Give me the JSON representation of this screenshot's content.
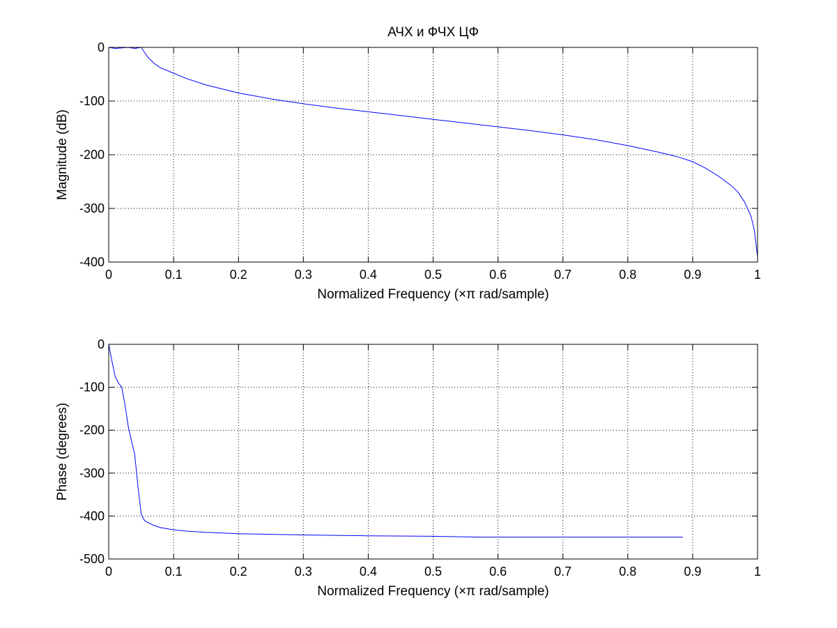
{
  "chart_data": [
    {
      "type": "line",
      "title": "АЧХ и ФЧХ ЦФ",
      "xlabel": "Normalized Frequency  (×π rad/sample)",
      "ylabel": "Magnitude (dB)",
      "xlim": [
        0,
        1
      ],
      "ylim": [
        -400,
        0
      ],
      "xticks": [
        0,
        0.1,
        0.2,
        0.3,
        0.4,
        0.5,
        0.6,
        0.7,
        0.8,
        0.9,
        1
      ],
      "xtick_labels": [
        "0",
        "0.1",
        "0.2",
        "0.3",
        "0.4",
        "0.5",
        "0.6",
        "0.7",
        "0.8",
        "0.9",
        "1"
      ],
      "yticks": [
        -400,
        -300,
        -200,
        -100,
        0
      ],
      "ytick_labels": [
        "-400",
        "-300",
        "-200",
        "-100",
        "0"
      ],
      "grid": true,
      "line_color": "#0000ff",
      "series": [
        {
          "x": [
            0,
            0.01,
            0.02,
            0.03,
            0.04,
            0.045,
            0.05,
            0.06,
            0.07,
            0.08,
            0.1,
            0.12,
            0.15,
            0.2,
            0.25,
            0.3,
            0.35,
            0.4,
            0.45,
            0.5,
            0.55,
            0.6,
            0.65,
            0.7,
            0.75,
            0.8,
            0.85,
            0.88,
            0.9,
            0.92,
            0.94,
            0.96,
            0.97,
            0.98,
            0.99,
            0.995,
            1
          ],
          "y": [
            0,
            -2,
            -1,
            0,
            -2,
            -1,
            0,
            -18,
            -30,
            -38,
            -48,
            -58,
            -70,
            -85,
            -96,
            -105,
            -113,
            -120,
            -127,
            -134,
            -141,
            -148,
            -155,
            -163,
            -172,
            -183,
            -196,
            -205,
            -213,
            -225,
            -240,
            -258,
            -270,
            -288,
            -315,
            -340,
            -390
          ]
        }
      ]
    },
    {
      "type": "line",
      "title": "",
      "xlabel": "Normalized Frequency  (×π rad/sample)",
      "ylabel": "Phase (degrees)",
      "xlim": [
        0,
        1
      ],
      "ylim": [
        -500,
        0
      ],
      "xticks": [
        0,
        0.1,
        0.2,
        0.3,
        0.4,
        0.5,
        0.6,
        0.7,
        0.8,
        0.9,
        1
      ],
      "xtick_labels": [
        "0",
        "0.1",
        "0.2",
        "0.3",
        "0.4",
        "0.5",
        "0.6",
        "0.7",
        "0.8",
        "0.9",
        "1"
      ],
      "yticks": [
        -500,
        -400,
        -300,
        -200,
        -100,
        0
      ],
      "ytick_labels": [
        "-500",
        "-400",
        "-300",
        "-200",
        "-100",
        "0"
      ],
      "grid": true,
      "line_color": "#0000ff",
      "series": [
        {
          "x": [
            0,
            0.005,
            0.01,
            0.015,
            0.02,
            0.025,
            0.03,
            0.035,
            0.04,
            0.045,
            0.05,
            0.055,
            0.06,
            0.07,
            0.08,
            0.1,
            0.12,
            0.15,
            0.2,
            0.3,
            0.4,
            0.5,
            0.57,
            0.6,
            0.7,
            0.8,
            0.885
          ],
          "y": [
            0,
            -40,
            -75,
            -90,
            -100,
            -140,
            -190,
            -225,
            -255,
            -330,
            -395,
            -410,
            -415,
            -422,
            -427,
            -432,
            -435,
            -438,
            -441,
            -444,
            -446,
            -447,
            -449,
            -449,
            -449,
            -449,
            -449
          ]
        }
      ]
    }
  ]
}
